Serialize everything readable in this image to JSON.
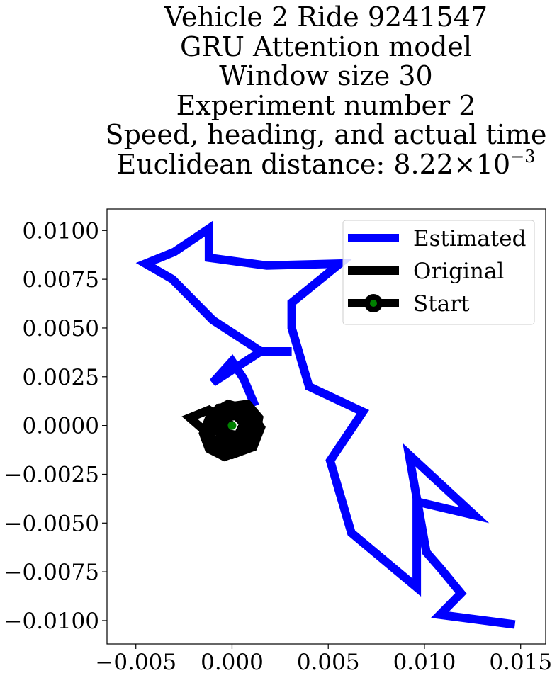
{
  "title_lines": [
    "Vehicle 2 Ride 9241547",
    "GRU Attention model",
    "Window size 30",
    "Experiment number 2",
    "Speed, heading, and actual time"
  ],
  "title_distance": {
    "prefix": "Euclidean distance: 8.22",
    "times": "×10",
    "exp": "−3"
  },
  "chart_data": {
    "type": "line",
    "title": "Vehicle 2 Ride 9241547 GRU Attention model Window size 30 Experiment number 2 Speed, heading, and actual time Euclidean distance: 8.22×10^-3",
    "xlabel": "",
    "ylabel": "",
    "xlim": [
      -0.0065,
      0.0163
    ],
    "ylim": [
      -0.0112,
      0.0111
    ],
    "xticks": [
      -0.005,
      0.0,
      0.005,
      0.01,
      0.015
    ],
    "xtick_labels": [
      "−0.005",
      "0.000",
      "0.005",
      "0.010",
      "0.015"
    ],
    "yticks": [
      0.01,
      0.0075,
      0.005,
      0.0025,
      0.0,
      -0.0025,
      -0.005,
      -0.0075,
      -0.01
    ],
    "ytick_labels": [
      "0.0100",
      "0.0075",
      "0.0050",
      "0.0025",
      "0.0000",
      "−0.0025",
      "−0.0050",
      "−0.0075",
      "−0.0100"
    ],
    "grid": false,
    "legend_position": "top-right",
    "series": [
      {
        "name": "Estimated",
        "color": "#0000ff",
        "points": [
          [
            0.0012,
            0.001
          ],
          [
            0.0006,
            0.0024
          ],
          [
            0.0,
            0.0033
          ],
          [
            -0.001,
            0.0022
          ],
          [
            0.0015,
            0.0038
          ],
          [
            0.0031,
            0.0038
          ],
          [
            0.0015,
            0.0038
          ],
          [
            -0.001,
            0.0054
          ],
          [
            -0.0031,
            0.0075
          ],
          [
            -0.0045,
            0.0083
          ],
          [
            -0.003,
            0.0089
          ],
          [
            -0.0012,
            0.0101
          ],
          [
            -0.0012,
            0.0086
          ],
          [
            0.0018,
            0.0082
          ],
          [
            0.0056,
            0.0083
          ],
          [
            0.0031,
            0.0063
          ],
          [
            0.0031,
            0.005
          ],
          [
            0.004,
            0.002
          ],
          [
            0.0068,
            0.0007
          ],
          [
            0.0051,
            -0.0018
          ],
          [
            0.0062,
            -0.0055
          ],
          [
            0.0096,
            -0.0083
          ],
          [
            0.0096,
            -0.0039
          ],
          [
            0.0126,
            -0.0046
          ],
          [
            0.0092,
            -0.0015
          ],
          [
            0.0101,
            -0.0065
          ],
          [
            0.0109,
            -0.0074
          ],
          [
            0.0119,
            -0.0086
          ],
          [
            0.0108,
            -0.0097
          ],
          [
            0.0147,
            -0.0102
          ]
        ]
      },
      {
        "name": "Original",
        "color": "#000000",
        "points": [
          [
            0.0,
            0.0
          ],
          [
            -0.0012,
            0.0008
          ],
          [
            -0.0022,
            0.0004
          ],
          [
            -0.0015,
            -0.0002
          ],
          [
            -0.0007,
            0.0009
          ],
          [
            0.0008,
            0.0011
          ],
          [
            0.0014,
            0.0004
          ],
          [
            0.0012,
            -0.0007
          ],
          [
            0.0005,
            -0.0013
          ],
          [
            -0.0004,
            -0.0016
          ],
          [
            -0.0012,
            -0.0012
          ],
          [
            -0.0015,
            -0.0004
          ],
          [
            -0.0011,
            0.0006
          ],
          [
            -0.0002,
            0.0011
          ],
          [
            0.0009,
            0.0008
          ],
          [
            0.0015,
            -0.0001
          ],
          [
            0.0011,
            -0.0011
          ],
          [
            0.0,
            -0.0015
          ],
          [
            -0.0009,
            -0.0011
          ],
          [
            -0.0013,
            -0.0002
          ],
          [
            -0.0008,
            0.0007
          ],
          [
            0.0003,
            0.0009
          ],
          [
            0.0011,
            0.0004
          ],
          [
            0.0012,
            -0.0005
          ],
          [
            0.0006,
            -0.0011
          ],
          [
            -0.0004,
            -0.0012
          ],
          [
            -0.0011,
            -0.0006
          ],
          [
            -0.001,
            0.0003
          ],
          [
            -0.0003,
            0.0008
          ],
          [
            0.0006,
            0.0006
          ],
          [
            0.0009,
            -0.0002
          ],
          [
            0.0004,
            -0.0008
          ],
          [
            -0.0004,
            -0.0008
          ],
          [
            -0.0008,
            -0.0002
          ],
          [
            -0.0005,
            0.0004
          ],
          [
            0.0002,
            0.0005
          ],
          [
            0.0006,
            0.0001
          ],
          [
            0.0003,
            -0.0005
          ],
          [
            -0.0003,
            -0.0004
          ],
          [
            -0.0004,
            0.0001
          ],
          [
            0.0,
            0.0
          ]
        ]
      },
      {
        "name": "Start",
        "color": "#000000",
        "marker_color": "#008000",
        "points": [
          [
            0.0,
            0.0
          ]
        ]
      }
    ]
  }
}
